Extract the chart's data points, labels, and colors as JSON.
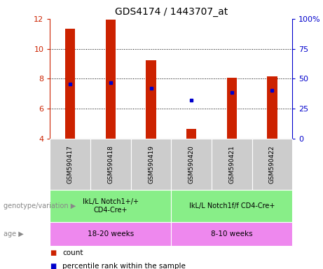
{
  "title": "GDS4174 / 1443707_at",
  "samples": [
    "GSM590417",
    "GSM590418",
    "GSM590419",
    "GSM590420",
    "GSM590421",
    "GSM590422"
  ],
  "counts": [
    11.35,
    11.95,
    9.25,
    4.65,
    8.05,
    8.15
  ],
  "percentile_ranks": [
    7.65,
    7.75,
    7.35,
    6.55,
    7.1,
    7.2
  ],
  "ylim_left": [
    4,
    12
  ],
  "ylim_right": [
    0,
    100
  ],
  "yticks_left": [
    4,
    6,
    8,
    10,
    12
  ],
  "yticks_right": [
    0,
    25,
    50,
    75,
    100
  ],
  "bar_color": "#cc2200",
  "dot_color": "#0000cc",
  "genotype_groups": [
    {
      "label": "IkL/L Notch1+/+\nCD4-Cre+",
      "start": 0,
      "end": 3,
      "color": "#88ee88"
    },
    {
      "label": "IkL/L Notch1f/f CD4-Cre+",
      "start": 3,
      "end": 6,
      "color": "#88ee88"
    }
  ],
  "age_groups": [
    {
      "label": "18-20 weeks",
      "start": 0,
      "end": 3,
      "color": "#ee88ee"
    },
    {
      "label": "8-10 weeks",
      "start": 3,
      "end": 6,
      "color": "#ee88ee"
    }
  ],
  "genotype_label": "genotype/variation",
  "age_label": "age",
  "legend_count_label": "count",
  "legend_pct_label": "percentile rank within the sample",
  "bar_width": 0.25,
  "left_tick_color": "#cc2200",
  "right_tick_color": "#0000cc",
  "sample_bg_color": "#cccccc",
  "border_color": "#aaaaaa"
}
